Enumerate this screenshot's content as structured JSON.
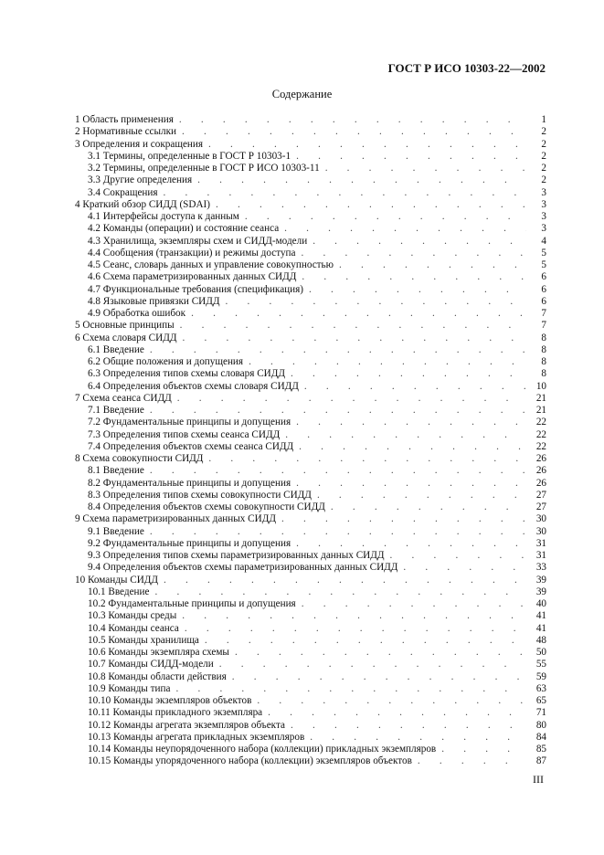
{
  "header": {
    "doc_id": "ГОСТ Р ИСО 10303-22—2002"
  },
  "title": "Содержание",
  "toc": [
    {
      "label": "1 Область применения",
      "page": "1",
      "level": 1
    },
    {
      "label": "2 Нормативные ссылки",
      "page": "2",
      "level": 1
    },
    {
      "label": "3 Определения и сокращения",
      "page": "2",
      "level": 1
    },
    {
      "label": "3.1 Термины, определенные в ГОСТ Р 10303-1",
      "page": "2",
      "level": 2
    },
    {
      "label": "3.2 Термины, определенные в ГОСТ Р ИСО 10303-11",
      "page": "2",
      "level": 2
    },
    {
      "label": "3.3 Другие определения",
      "page": "2",
      "level": 2
    },
    {
      "label": "3.4 Сокращения",
      "page": "3",
      "level": 2
    },
    {
      "label": "4 Краткий обзор СИДД (SDAI)",
      "page": "3",
      "level": 1
    },
    {
      "label": "4.1 Интерфейсы доступа к данным",
      "page": "3",
      "level": 2
    },
    {
      "label": "4.2 Команды (операции) и состояние сеанса",
      "page": "3",
      "level": 2
    },
    {
      "label": "4.3 Хранилища, экземпляры схем и СИДД-модели",
      "page": "4",
      "level": 2
    },
    {
      "label": "4.4 Сообщения (транзакции) и режимы доступа",
      "page": "5",
      "level": 2
    },
    {
      "label": "4.5 Сеанс, словарь данных и управление совокупностью",
      "page": "5",
      "level": 2
    },
    {
      "label": "4.6 Схема параметризированных данных СИДД",
      "page": "6",
      "level": 2
    },
    {
      "label": "4.7 Функциональные требования (спецификация)",
      "page": "6",
      "level": 2
    },
    {
      "label": "4.8 Языковые привязки СИДД",
      "page": "6",
      "level": 2
    },
    {
      "label": "4.9 Обработка ошибок",
      "page": "7",
      "level": 2
    },
    {
      "label": "5 Основные принципы",
      "page": "7",
      "level": 1
    },
    {
      "label": "6 Схема словаря СИДД",
      "page": "8",
      "level": 1
    },
    {
      "label": "6.1 Введение",
      "page": "8",
      "level": 2
    },
    {
      "label": "6.2 Общие положения и допущения",
      "page": "8",
      "level": 2
    },
    {
      "label": "6.3 Определения типов схемы словаря СИДД",
      "page": "8",
      "level": 2
    },
    {
      "label": "6.4 Определения объектов схемы словаря СИДД",
      "page": "10",
      "level": 2
    },
    {
      "label": "7 Схема сеанса СИДД",
      "page": "21",
      "level": 1
    },
    {
      "label": "7.1 Введение",
      "page": "21",
      "level": 2
    },
    {
      "label": "7.2 Фундаментальные принципы и допущения",
      "page": "22",
      "level": 2
    },
    {
      "label": "7.3 Определения типов схемы сеанса СИДД",
      "page": "22",
      "level": 2
    },
    {
      "label": "7.4 Определения объектов схемы сеанса СИДД",
      "page": "22",
      "level": 2
    },
    {
      "label": "8 Схема совокупности СИДД",
      "page": "26",
      "level": 1
    },
    {
      "label": "8.1 Введение",
      "page": "26",
      "level": 2
    },
    {
      "label": "8.2 Фундаментальные принципы и допущения",
      "page": "26",
      "level": 2
    },
    {
      "label": "8.3 Определения типов схемы совокупности СИДД",
      "page": "27",
      "level": 2
    },
    {
      "label": "8.4 Определения объектов схемы совокупности СИДД",
      "page": "27",
      "level": 2
    },
    {
      "label": "9 Схема параметризированных данных СИДД",
      "page": "30",
      "level": 1
    },
    {
      "label": "9.1 Введение",
      "page": "30",
      "level": 2
    },
    {
      "label": "9.2 Фундаментальные принципы и допущения",
      "page": "31",
      "level": 2
    },
    {
      "label": "9.3 Определения типов схемы параметризированных данных СИДД",
      "page": "31",
      "level": 2
    },
    {
      "label": "9.4 Определения объектов схемы параметризированных данных СИДД",
      "page": "33",
      "level": 2
    },
    {
      "label": "10 Команды СИДД",
      "page": "39",
      "level": 1
    },
    {
      "label": "10.1 Введение",
      "page": "39",
      "level": 2
    },
    {
      "label": "10.2 Фундаментальные принципы и допущения",
      "page": "40",
      "level": 2
    },
    {
      "label": "10.3 Команды среды",
      "page": "41",
      "level": 2
    },
    {
      "label": "10.4 Команды сеанса",
      "page": "41",
      "level": 2
    },
    {
      "label": "10.5 Команды хранилища",
      "page": "48",
      "level": 2
    },
    {
      "label": "10.6 Команды экземпляра схемы",
      "page": "50",
      "level": 2
    },
    {
      "label": "10.7 Команды СИДД-модели",
      "page": "55",
      "level": 2
    },
    {
      "label": "10.8 Команды области действия",
      "page": "59",
      "level": 2
    },
    {
      "label": "10.9 Команды типа",
      "page": "63",
      "level": 2
    },
    {
      "label": "10.10 Команды экземпляров объектов",
      "page": "65",
      "level": 2
    },
    {
      "label": "10.11 Команды прикладного экземпляра",
      "page": "71",
      "level": 2
    },
    {
      "label": "10.12 Команды агрегата экземпляров объекта",
      "page": "80",
      "level": 2
    },
    {
      "label": "10.13 Команды агрегата прикладных экземпляров",
      "page": "84",
      "level": 2
    },
    {
      "label": "10.14 Команды неупорядоченного набора (коллекции) прикладных экземпляров",
      "page": "85",
      "level": 2
    },
    {
      "label": "10.15 Команды упорядоченного набора (коллекции) экземпляров объектов",
      "page": "87",
      "level": 2
    }
  ],
  "footer": {
    "page_number": "III"
  }
}
